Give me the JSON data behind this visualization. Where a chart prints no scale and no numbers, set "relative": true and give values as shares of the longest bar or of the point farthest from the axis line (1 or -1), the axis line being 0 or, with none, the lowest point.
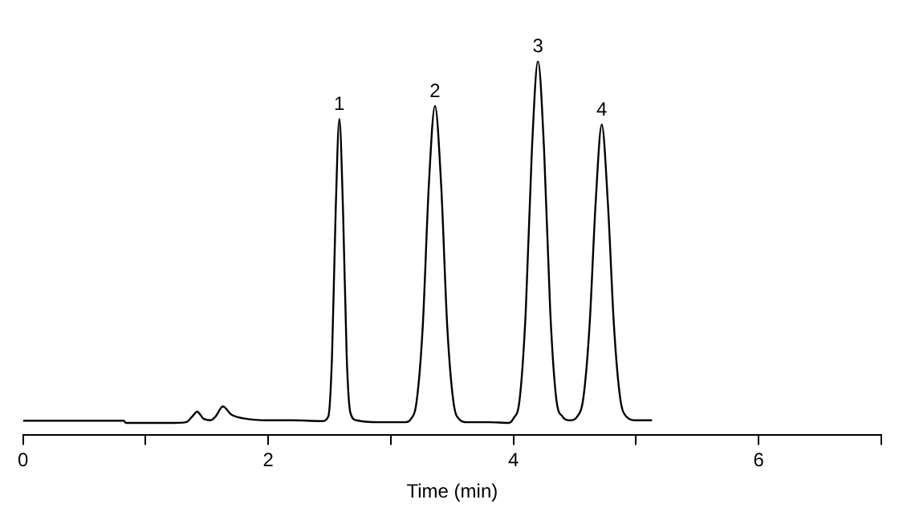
{
  "chart_data": {
    "type": "line",
    "relative": true,
    "xlabel": "Time (min)",
    "xlim": [
      0,
      7
    ],
    "xticks": [
      0,
      {
        "value": 1,
        "label": null
      },
      2,
      {
        "value": 3,
        "label": null
      },
      4,
      {
        "value": 5,
        "label": null
      },
      6,
      {
        "value": 7,
        "label": null
      }
    ],
    "x": [
      0,
      0.82,
      0.84,
      1.2,
      1.33,
      1.38,
      1.42,
      1.47,
      1.53,
      1.57,
      1.63,
      1.7,
      1.8,
      2.0,
      2.2,
      2.44,
      2.49,
      2.52,
      2.55,
      2.58,
      2.61,
      2.64,
      2.67,
      2.72,
      2.9,
      3.12,
      3.16,
      3.21,
      3.26,
      3.31,
      3.36,
      3.41,
      3.46,
      3.51,
      3.56,
      3.62,
      3.8,
      3.96,
      4.0,
      4.05,
      4.1,
      4.15,
      4.2,
      4.25,
      4.3,
      4.35,
      4.4,
      4.46,
      4.52,
      4.57,
      4.62,
      4.67,
      4.72,
      4.77,
      4.82,
      4.87,
      4.92,
      5.0,
      5.13
    ],
    "values": [
      0.039,
      0.039,
      0.033,
      0.033,
      0.035,
      0.05,
      0.063,
      0.045,
      0.04,
      0.05,
      0.077,
      0.055,
      0.045,
      0.04,
      0.04,
      0.038,
      0.05,
      0.21,
      0.6,
      0.845,
      0.6,
      0.21,
      0.06,
      0.04,
      0.035,
      0.035,
      0.042,
      0.09,
      0.29,
      0.67,
      0.88,
      0.67,
      0.29,
      0.09,
      0.042,
      0.035,
      0.035,
      0.033,
      0.045,
      0.095,
      0.33,
      0.76,
      1,
      0.76,
      0.33,
      0.095,
      0.05,
      0.04,
      0.05,
      0.1,
      0.29,
      0.62,
      0.83,
      0.62,
      0.29,
      0.1,
      0.05,
      0.04,
      0.04
    ],
    "color": "#000000",
    "marker": "none",
    "grid": false,
    "legend": false,
    "annotations": [
      {
        "text": "1",
        "x": 2.58,
        "y": 0.845
      },
      {
        "text": "2",
        "x": 3.36,
        "y": 0.88
      },
      {
        "text": "3",
        "x": 4.2,
        "y": 1
      },
      {
        "text": "4",
        "x": 4.72,
        "y": 0.83
      }
    ]
  }
}
